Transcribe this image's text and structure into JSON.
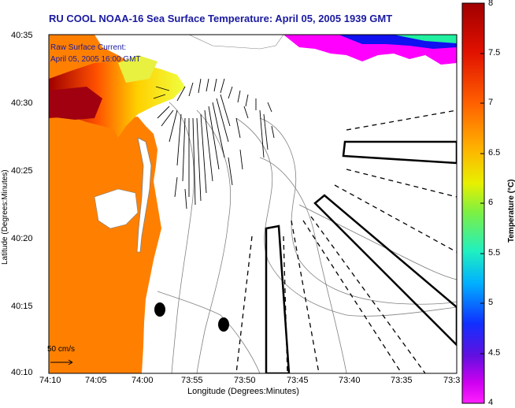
{
  "title": "RU COOL  NOAA-16  Sea Surface Temperature:  April 05, 2005 1939 GMT",
  "axes": {
    "ylabel": "Latitude (Degrees:Minutes)",
    "xlabel": "Longitude (Degrees:Minutes)",
    "yticks": [
      "40:35",
      "40:30",
      "40:25",
      "40:20",
      "40:15",
      "40:10"
    ],
    "xticks": [
      "74:10",
      "74:05",
      "74:00",
      "73:55",
      "73:50",
      "73:45",
      "73:40",
      "73:35",
      "73:3"
    ]
  },
  "legend": {
    "raw_current_label": "Raw Surface Current:",
    "raw_current_time": "April 05, 2005 16:00 GMT",
    "scale_label": "50 cm/s"
  },
  "colorbar": {
    "title": "Temperature (°C)",
    "ticks": [
      "8",
      "7.5",
      "7",
      "6.5",
      "6",
      "5.5",
      "5",
      "4.5",
      "4"
    ],
    "colors": [
      "#b00000",
      "#e81c00",
      "#ff6a00",
      "#ffb000",
      "#e8f000",
      "#90f040",
      "#30f0a0",
      "#00c0ff",
      "#2060ff",
      "#1010f0",
      "#8010f0",
      "#ff00ff"
    ]
  },
  "map_colors": {
    "land": "#ff8000",
    "water": "#ffffff",
    "contour": "#808080"
  }
}
